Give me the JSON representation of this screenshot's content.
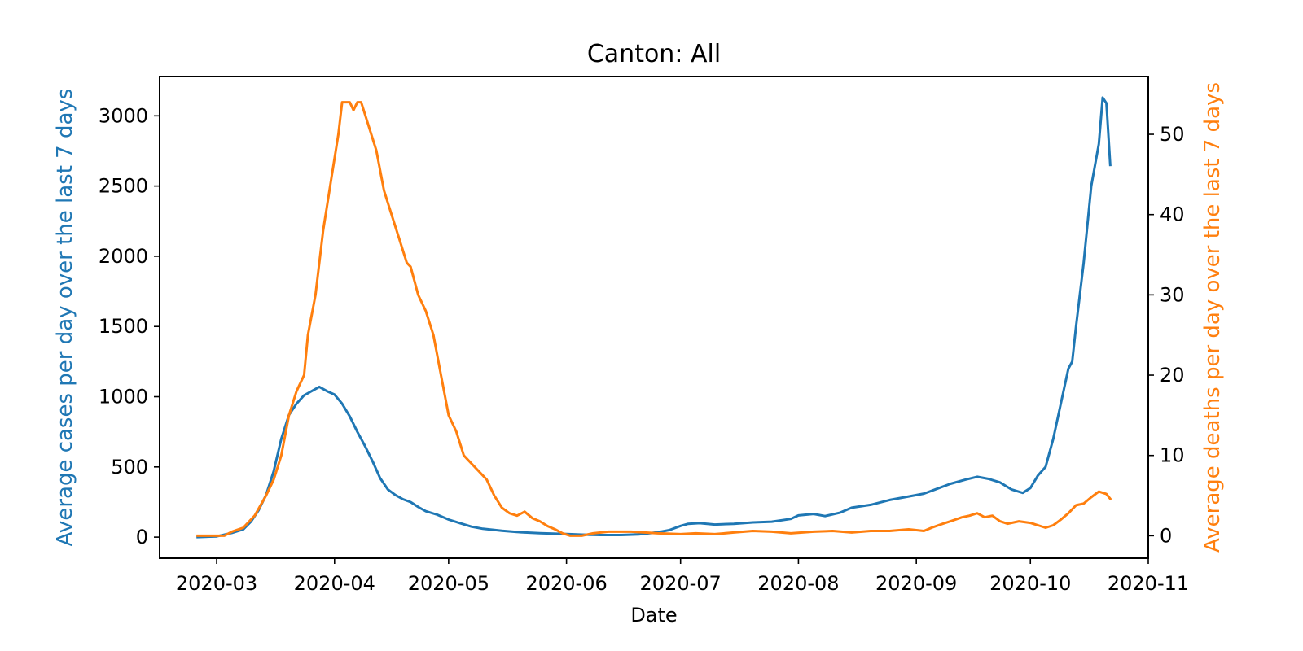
{
  "chart_data": {
    "type": "line",
    "title": "Canton: All",
    "xlabel": "Date",
    "ylabel_left": "Average cases per day over the last 7 days",
    "ylabel_right": "Average deaths per day over the last 7 days",
    "xlim": [
      "2020-02-15",
      "2020-11-01"
    ],
    "ylim_left": [
      -150,
      3280
    ],
    "ylim_right": [
      -2.8,
      57.2
    ],
    "x_ticks": [
      "2020-03",
      "2020-04",
      "2020-05",
      "2020-06",
      "2020-07",
      "2020-08",
      "2020-09",
      "2020-10",
      "2020-11"
    ],
    "y_ticks_left": [
      0,
      500,
      1000,
      1500,
      2000,
      2500,
      3000
    ],
    "y_ticks_right": [
      0,
      10,
      20,
      30,
      40,
      50
    ],
    "grid": false,
    "colors": {
      "cases": "#1f77b4",
      "deaths": "#ff7f0e"
    },
    "series": [
      {
        "axis": "left",
        "values": [
          [
            "2020-02-25",
            0
          ],
          [
            "2020-03-01",
            5
          ],
          [
            "2020-03-05",
            30
          ],
          [
            "2020-03-08",
            55
          ],
          [
            "2020-03-10",
            110
          ],
          [
            "2020-03-12",
            190
          ],
          [
            "2020-03-14",
            300
          ],
          [
            "2020-03-16",
            470
          ],
          [
            "2020-03-18",
            700
          ],
          [
            "2020-03-20",
            870
          ],
          [
            "2020-03-22",
            950
          ],
          [
            "2020-03-24",
            1010
          ],
          [
            "2020-03-26",
            1040
          ],
          [
            "2020-03-28",
            1070
          ],
          [
            "2020-03-30",
            1040
          ],
          [
            "2020-04-01",
            1015
          ],
          [
            "2020-04-03",
            950
          ],
          [
            "2020-04-05",
            860
          ],
          [
            "2020-04-07",
            750
          ],
          [
            "2020-04-09",
            650
          ],
          [
            "2020-04-11",
            540
          ],
          [
            "2020-04-13",
            420
          ],
          [
            "2020-04-15",
            340
          ],
          [
            "2020-04-17",
            300
          ],
          [
            "2020-04-19",
            270
          ],
          [
            "2020-04-21",
            250
          ],
          [
            "2020-04-23",
            215
          ],
          [
            "2020-04-25",
            185
          ],
          [
            "2020-04-28",
            160
          ],
          [
            "2020-05-01",
            125
          ],
          [
            "2020-05-04",
            100
          ],
          [
            "2020-05-07",
            75
          ],
          [
            "2020-05-10",
            60
          ],
          [
            "2020-05-15",
            45
          ],
          [
            "2020-05-20",
            35
          ],
          [
            "2020-05-25",
            28
          ],
          [
            "2020-06-01",
            22
          ],
          [
            "2020-06-05",
            18
          ],
          [
            "2020-06-10",
            15
          ],
          [
            "2020-06-15",
            15
          ],
          [
            "2020-06-20",
            20
          ],
          [
            "2020-06-25",
            35
          ],
          [
            "2020-06-28",
            50
          ],
          [
            "2020-07-01",
            80
          ],
          [
            "2020-07-03",
            95
          ],
          [
            "2020-07-06",
            100
          ],
          [
            "2020-07-10",
            90
          ],
          [
            "2020-07-15",
            95
          ],
          [
            "2020-07-20",
            105
          ],
          [
            "2020-07-25",
            110
          ],
          [
            "2020-07-30",
            130
          ],
          [
            "2020-08-01",
            155
          ],
          [
            "2020-08-05",
            165
          ],
          [
            "2020-08-08",
            150
          ],
          [
            "2020-08-12",
            175
          ],
          [
            "2020-08-15",
            210
          ],
          [
            "2020-08-20",
            230
          ],
          [
            "2020-08-25",
            265
          ],
          [
            "2020-08-30",
            290
          ],
          [
            "2020-09-03",
            310
          ],
          [
            "2020-09-07",
            350
          ],
          [
            "2020-09-10",
            380
          ],
          [
            "2020-09-14",
            410
          ],
          [
            "2020-09-17",
            430
          ],
          [
            "2020-09-20",
            415
          ],
          [
            "2020-09-23",
            390
          ],
          [
            "2020-09-26",
            340
          ],
          [
            "2020-09-29",
            315
          ],
          [
            "2020-10-01",
            350
          ],
          [
            "2020-10-03",
            440
          ],
          [
            "2020-10-05",
            500
          ],
          [
            "2020-10-07",
            700
          ],
          [
            "2020-10-09",
            950
          ],
          [
            "2020-10-11",
            1200
          ],
          [
            "2020-10-12",
            1250
          ],
          [
            "2020-10-13",
            1500
          ],
          [
            "2020-10-15",
            1950
          ],
          [
            "2020-10-17",
            2500
          ],
          [
            "2020-10-19",
            2800
          ],
          [
            "2020-10-20",
            3130
          ],
          [
            "2020-10-21",
            3090
          ],
          [
            "2020-10-22",
            2650
          ]
        ]
      },
      {
        "axis": "right",
        "values": [
          [
            "2020-02-25",
            0
          ],
          [
            "2020-03-03",
            0
          ],
          [
            "2020-03-05",
            0.5
          ],
          [
            "2020-03-08",
            1
          ],
          [
            "2020-03-11",
            2.5
          ],
          [
            "2020-03-14",
            5
          ],
          [
            "2020-03-16",
            7
          ],
          [
            "2020-03-18",
            10
          ],
          [
            "2020-03-20",
            15
          ],
          [
            "2020-03-22",
            18
          ],
          [
            "2020-03-24",
            20
          ],
          [
            "2020-03-25",
            25
          ],
          [
            "2020-03-27",
            30
          ],
          [
            "2020-03-29",
            38
          ],
          [
            "2020-03-31",
            44
          ],
          [
            "2020-04-02",
            50
          ],
          [
            "2020-04-03",
            54
          ],
          [
            "2020-04-05",
            54
          ],
          [
            "2020-04-06",
            53
          ],
          [
            "2020-04-07",
            54
          ],
          [
            "2020-04-08",
            54
          ],
          [
            "2020-04-10",
            51
          ],
          [
            "2020-04-12",
            48
          ],
          [
            "2020-04-14",
            43
          ],
          [
            "2020-04-16",
            40
          ],
          [
            "2020-04-18",
            37
          ],
          [
            "2020-04-20",
            34
          ],
          [
            "2020-04-21",
            33.5
          ],
          [
            "2020-04-23",
            30
          ],
          [
            "2020-04-25",
            28
          ],
          [
            "2020-04-27",
            25
          ],
          [
            "2020-04-29",
            20
          ],
          [
            "2020-05-01",
            15
          ],
          [
            "2020-05-03",
            13
          ],
          [
            "2020-05-05",
            10
          ],
          [
            "2020-05-07",
            9
          ],
          [
            "2020-05-09",
            8
          ],
          [
            "2020-05-11",
            7
          ],
          [
            "2020-05-13",
            5
          ],
          [
            "2020-05-15",
            3.5
          ],
          [
            "2020-05-17",
            2.8
          ],
          [
            "2020-05-19",
            2.5
          ],
          [
            "2020-05-21",
            3
          ],
          [
            "2020-05-23",
            2.2
          ],
          [
            "2020-05-25",
            1.8
          ],
          [
            "2020-05-27",
            1.2
          ],
          [
            "2020-05-29",
            0.8
          ],
          [
            "2020-05-31",
            0.3
          ],
          [
            "2020-06-02",
            0
          ],
          [
            "2020-06-05",
            0
          ],
          [
            "2020-06-08",
            0.3
          ],
          [
            "2020-06-12",
            0.5
          ],
          [
            "2020-06-18",
            0.5
          ],
          [
            "2020-06-25",
            0.3
          ],
          [
            "2020-07-01",
            0.2
          ],
          [
            "2020-07-05",
            0.3
          ],
          [
            "2020-07-10",
            0.2
          ],
          [
            "2020-07-15",
            0.4
          ],
          [
            "2020-07-20",
            0.6
          ],
          [
            "2020-07-25",
            0.5
          ],
          [
            "2020-07-30",
            0.3
          ],
          [
            "2020-08-05",
            0.5
          ],
          [
            "2020-08-10",
            0.6
          ],
          [
            "2020-08-15",
            0.4
          ],
          [
            "2020-08-20",
            0.6
          ],
          [
            "2020-08-25",
            0.6
          ],
          [
            "2020-08-30",
            0.8
          ],
          [
            "2020-09-03",
            0.6
          ],
          [
            "2020-09-05",
            1
          ],
          [
            "2020-09-08",
            1.5
          ],
          [
            "2020-09-10",
            1.8
          ],
          [
            "2020-09-13",
            2.3
          ],
          [
            "2020-09-15",
            2.5
          ],
          [
            "2020-09-17",
            2.8
          ],
          [
            "2020-09-19",
            2.3
          ],
          [
            "2020-09-21",
            2.5
          ],
          [
            "2020-09-23",
            1.8
          ],
          [
            "2020-09-25",
            1.5
          ],
          [
            "2020-09-28",
            1.8
          ],
          [
            "2020-10-01",
            1.6
          ],
          [
            "2020-10-03",
            1.3
          ],
          [
            "2020-10-05",
            1.0
          ],
          [
            "2020-10-07",
            1.3
          ],
          [
            "2020-10-09",
            2.0
          ],
          [
            "2020-10-11",
            2.8
          ],
          [
            "2020-10-13",
            3.8
          ],
          [
            "2020-10-15",
            4.0
          ],
          [
            "2020-10-17",
            4.8
          ],
          [
            "2020-10-19",
            5.5
          ],
          [
            "2020-10-21",
            5.2
          ],
          [
            "2020-10-22",
            4.6
          ]
        ]
      }
    ]
  }
}
